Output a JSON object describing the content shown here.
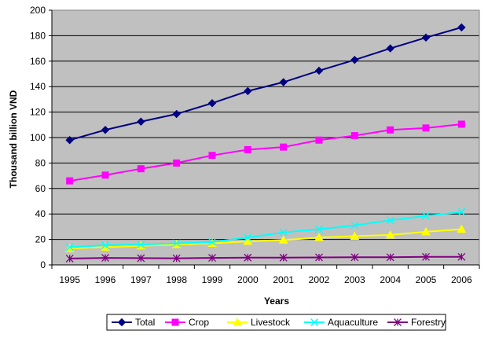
{
  "chart_data": {
    "type": "line",
    "title": "",
    "xlabel": "Years",
    "ylabel": "Thousand billion VND",
    "ylim": [
      0,
      200
    ],
    "ytick_step": 20,
    "yticks": [
      "0",
      "20",
      "40",
      "60",
      "80",
      "100",
      "120",
      "140",
      "160",
      "180",
      "200"
    ],
    "grid": true,
    "plot_background": "#c0c0c0",
    "legend_position": "bottom",
    "categories": [
      "1995",
      "1996",
      "1997",
      "1998",
      "1999",
      "2000",
      "2001",
      "2002",
      "2003",
      "2004",
      "2005",
      "2006"
    ],
    "series": [
      {
        "name": "Total",
        "color": "#000080",
        "marker": "diamond",
        "values": [
          98,
          106,
          112.5,
          118.5,
          127,
          136.5,
          143.5,
          152.5,
          161,
          170,
          178.5,
          186.5
        ]
      },
      {
        "name": "Crop",
        "color": "#ff00ff",
        "marker": "square",
        "values": [
          66,
          70.5,
          75.5,
          80,
          86,
          90.5,
          92.5,
          98,
          101.5,
          106,
          107.5,
          110.5
        ]
      },
      {
        "name": "Livestock",
        "color": "#ffff00",
        "marker": "triangle",
        "values": [
          13,
          14,
          15,
          16,
          17,
          18.5,
          19.5,
          21.5,
          22.5,
          23.5,
          26,
          28
        ]
      },
      {
        "name": "Aquaculture",
        "color": "#00ffff",
        "marker": "x",
        "values": [
          14,
          15.5,
          16,
          17,
          18,
          21.5,
          25.5,
          28,
          31,
          35,
          38.5,
          41.5
        ]
      },
      {
        "name": "Forestry",
        "color": "#800080",
        "marker": "asterisk",
        "values": [
          5,
          5.5,
          5.3,
          5.2,
          5.5,
          5.7,
          5.7,
          5.9,
          6,
          6,
          6.3,
          6.3
        ]
      }
    ]
  }
}
